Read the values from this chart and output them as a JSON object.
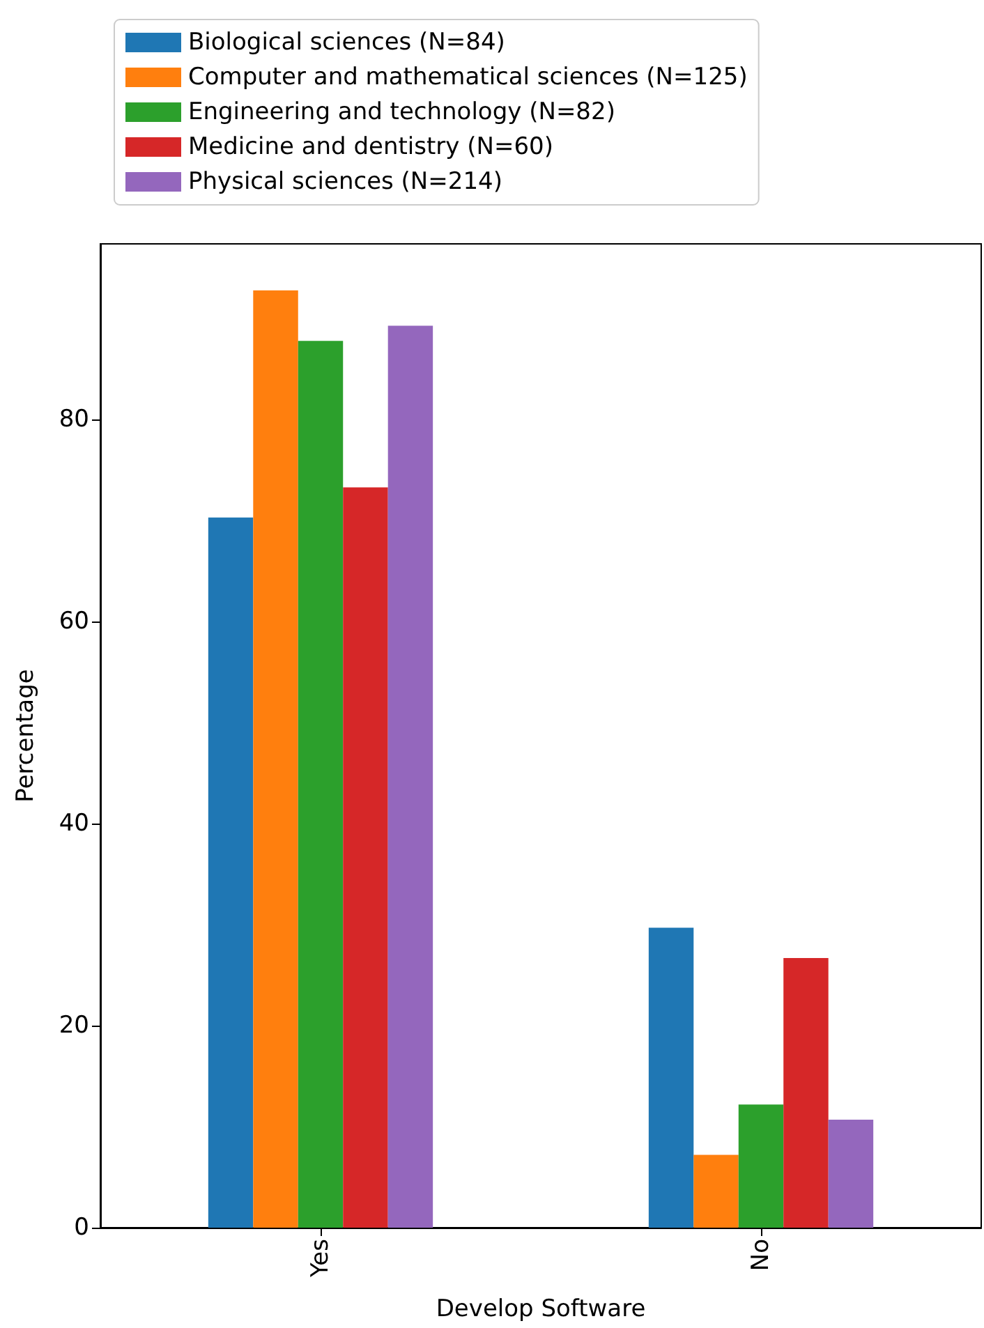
{
  "chart_data": {
    "type": "bar",
    "xlabel": "Develop Software",
    "ylabel": "Percentage",
    "categories": [
      "Yes",
      "No"
    ],
    "series": [
      {
        "name": "Biological sciences (N=84)",
        "color": "#1f77b4",
        "values": [
          70.3,
          29.7
        ]
      },
      {
        "name": "Computer and mathematical sciences (N=125)",
        "color": "#ff7f0e",
        "values": [
          92.8,
          7.2
        ]
      },
      {
        "name": "Engineering and technology (N=82)",
        "color": "#2ca02c",
        "values": [
          87.8,
          12.2
        ]
      },
      {
        "name": "Medicine and dentistry (N=60)",
        "color": "#d62728",
        "values": [
          73.3,
          26.7
        ]
      },
      {
        "name": "Physical sciences (N=214)",
        "color": "#9467bd",
        "values": [
          89.3,
          10.7
        ]
      }
    ],
    "ylim": [
      0,
      97.4
    ],
    "yticks": [
      0,
      20,
      40,
      60,
      80
    ],
    "legend": "top left"
  }
}
